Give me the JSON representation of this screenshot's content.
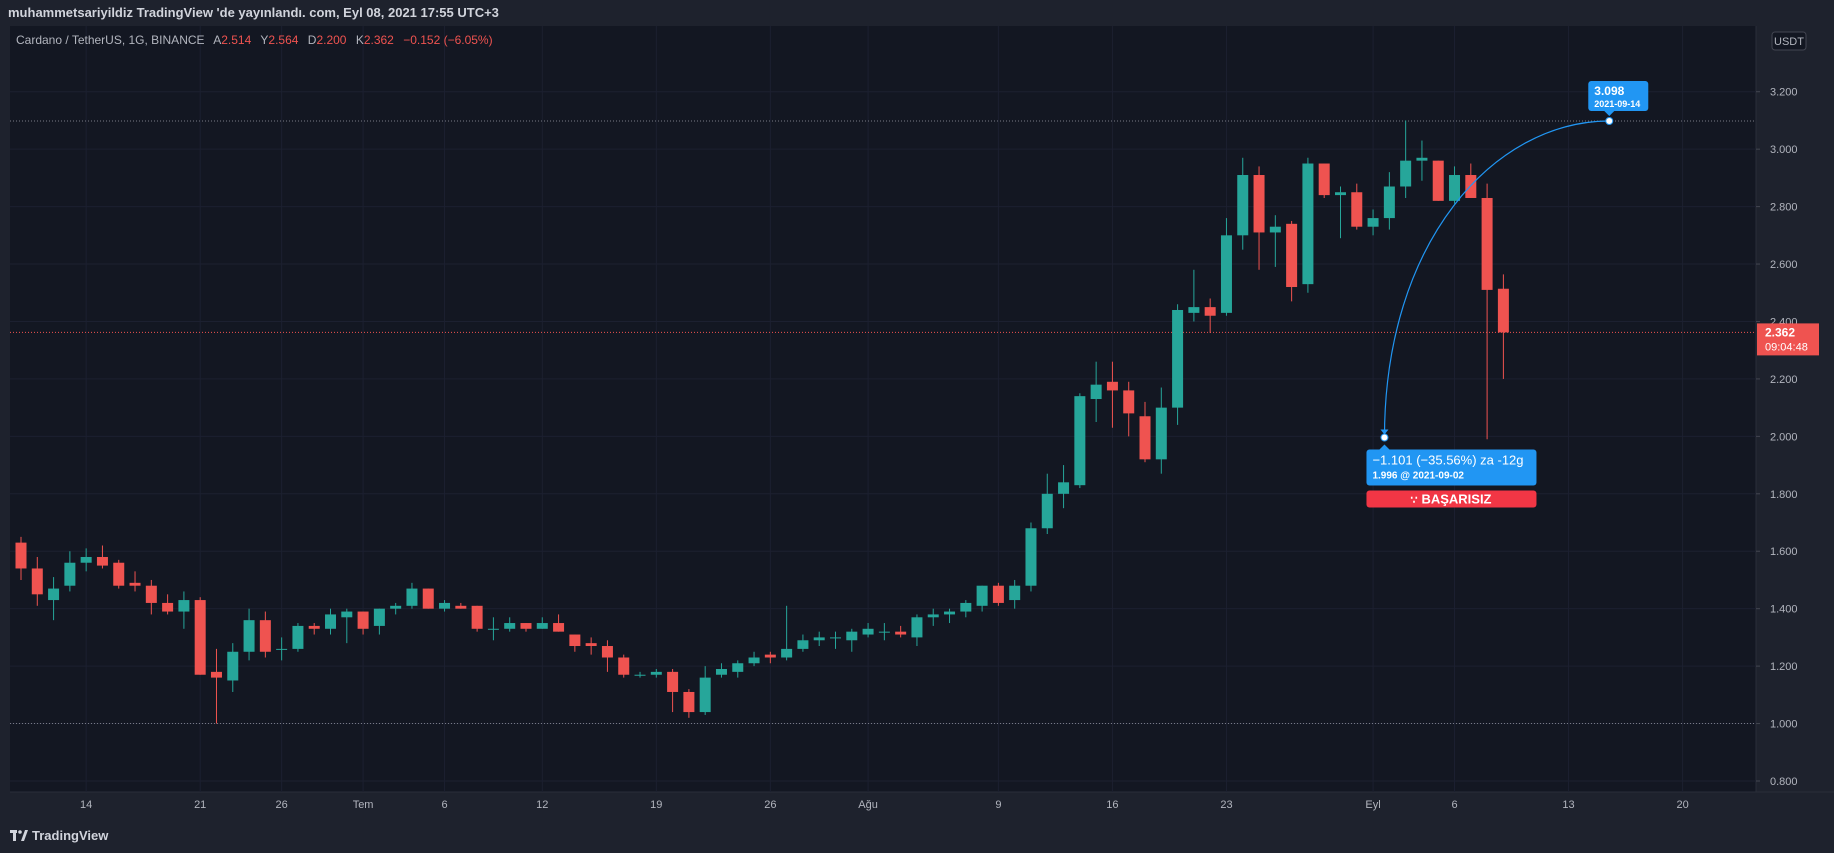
{
  "header": {
    "publish_line": "muhammetsariyildiz TradingView 'de yayınlandı. com, Eyl 08, 2021 17:55 UTC+3"
  },
  "legend": {
    "symbol": "Cardano / TetherUS, 1G, BINANCE",
    "open_label": "A",
    "open": "2.514",
    "high_label": "Y",
    "high": "2.564",
    "low_label": "D",
    "low": "2.200",
    "close_label": "K",
    "close": "2.362",
    "change": "−0.152 (−6.05%)"
  },
  "currency_badge": "USDT",
  "footer": {
    "brand": "TradingView"
  },
  "colors": {
    "background": "#131722",
    "frame": "#1e222d",
    "up": "#26a69a",
    "down": "#ef5350",
    "accent_blue": "#2196f3",
    "fail_red": "#f23645",
    "grid": "#1c2030",
    "text": "#b2b5be"
  },
  "chart_data": {
    "type": "candlestick",
    "y_axis": {
      "range": [
        0.8,
        3.3
      ],
      "ticks": [
        "3.200",
        "3.000",
        "2.800",
        "2.600",
        "2.400",
        "2.200",
        "2.000",
        "1.800",
        "1.600",
        "1.400",
        "1.200",
        "1.000",
        "0.800"
      ]
    },
    "x_ticks": [
      {
        "label": "14",
        "index": 4
      },
      {
        "label": "21",
        "index": 11
      },
      {
        "label": "26",
        "index": 16
      },
      {
        "label": "Tem",
        "index": 21
      },
      {
        "label": "6",
        "index": 26
      },
      {
        "label": "12",
        "index": 32
      },
      {
        "label": "19",
        "index": 39
      },
      {
        "label": "26",
        "index": 46
      },
      {
        "label": "Ağu",
        "index": 52
      },
      {
        "label": "9",
        "index": 60
      },
      {
        "label": "16",
        "index": 67
      },
      {
        "label": "23",
        "index": 74
      },
      {
        "label": "Eyl",
        "index": 83
      },
      {
        "label": "6",
        "index": 88
      },
      {
        "label": "13",
        "index": 95
      },
      {
        "label": "20",
        "index": 102
      }
    ],
    "candles": [
      {
        "o": 1.63,
        "h": 1.65,
        "l": 1.5,
        "c": 1.54
      },
      {
        "o": 1.54,
        "h": 1.58,
        "l": 1.41,
        "c": 1.45
      },
      {
        "o": 1.43,
        "h": 1.51,
        "l": 1.36,
        "c": 1.47
      },
      {
        "o": 1.48,
        "h": 1.6,
        "l": 1.46,
        "c": 1.56
      },
      {
        "o": 1.56,
        "h": 1.61,
        "l": 1.53,
        "c": 1.58
      },
      {
        "o": 1.58,
        "h": 1.62,
        "l": 1.54,
        "c": 1.55
      },
      {
        "o": 1.56,
        "h": 1.57,
        "l": 1.47,
        "c": 1.48
      },
      {
        "o": 1.49,
        "h": 1.53,
        "l": 1.46,
        "c": 1.48
      },
      {
        "o": 1.48,
        "h": 1.5,
        "l": 1.38,
        "c": 1.42
      },
      {
        "o": 1.42,
        "h": 1.45,
        "l": 1.38,
        "c": 1.39
      },
      {
        "o": 1.39,
        "h": 1.46,
        "l": 1.33,
        "c": 1.43
      },
      {
        "o": 1.43,
        "h": 1.44,
        "l": 1.17,
        "c": 1.17
      },
      {
        "o": 1.18,
        "h": 1.26,
        "l": 1.0,
        "c": 1.16
      },
      {
        "o": 1.15,
        "h": 1.28,
        "l": 1.11,
        "c": 1.25
      },
      {
        "o": 1.25,
        "h": 1.4,
        "l": 1.22,
        "c": 1.36
      },
      {
        "o": 1.36,
        "h": 1.39,
        "l": 1.23,
        "c": 1.25
      },
      {
        "o": 1.26,
        "h": 1.3,
        "l": 1.22,
        "c": 1.26
      },
      {
        "o": 1.26,
        "h": 1.35,
        "l": 1.25,
        "c": 1.34
      },
      {
        "o": 1.34,
        "h": 1.35,
        "l": 1.31,
        "c": 1.33
      },
      {
        "o": 1.33,
        "h": 1.4,
        "l": 1.31,
        "c": 1.38
      },
      {
        "o": 1.37,
        "h": 1.4,
        "l": 1.28,
        "c": 1.39
      },
      {
        "o": 1.39,
        "h": 1.39,
        "l": 1.31,
        "c": 1.33
      },
      {
        "o": 1.34,
        "h": 1.4,
        "l": 1.31,
        "c": 1.4
      },
      {
        "o": 1.4,
        "h": 1.42,
        "l": 1.38,
        "c": 1.41
      },
      {
        "o": 1.41,
        "h": 1.49,
        "l": 1.4,
        "c": 1.47
      },
      {
        "o": 1.47,
        "h": 1.47,
        "l": 1.4,
        "c": 1.4
      },
      {
        "o": 1.4,
        "h": 1.43,
        "l": 1.39,
        "c": 1.42
      },
      {
        "o": 1.41,
        "h": 1.42,
        "l": 1.4,
        "c": 1.4
      },
      {
        "o": 1.41,
        "h": 1.41,
        "l": 1.32,
        "c": 1.33
      },
      {
        "o": 1.33,
        "h": 1.37,
        "l": 1.29,
        "c": 1.33
      },
      {
        "o": 1.33,
        "h": 1.37,
        "l": 1.32,
        "c": 1.35
      },
      {
        "o": 1.35,
        "h": 1.35,
        "l": 1.32,
        "c": 1.33
      },
      {
        "o": 1.33,
        "h": 1.37,
        "l": 1.33,
        "c": 1.35
      },
      {
        "o": 1.35,
        "h": 1.38,
        "l": 1.32,
        "c": 1.32
      },
      {
        "o": 1.31,
        "h": 1.31,
        "l": 1.25,
        "c": 1.27
      },
      {
        "o": 1.28,
        "h": 1.3,
        "l": 1.24,
        "c": 1.27
      },
      {
        "o": 1.27,
        "h": 1.29,
        "l": 1.18,
        "c": 1.23
      },
      {
        "o": 1.23,
        "h": 1.24,
        "l": 1.16,
        "c": 1.17
      },
      {
        "o": 1.17,
        "h": 1.18,
        "l": 1.16,
        "c": 1.17
      },
      {
        "o": 1.17,
        "h": 1.19,
        "l": 1.16,
        "c": 1.18
      },
      {
        "o": 1.18,
        "h": 1.19,
        "l": 1.04,
        "c": 1.11
      },
      {
        "o": 1.11,
        "h": 1.12,
        "l": 1.02,
        "c": 1.04
      },
      {
        "o": 1.04,
        "h": 1.2,
        "l": 1.03,
        "c": 1.16
      },
      {
        "o": 1.17,
        "h": 1.21,
        "l": 1.16,
        "c": 1.19
      },
      {
        "o": 1.18,
        "h": 1.22,
        "l": 1.16,
        "c": 1.21
      },
      {
        "o": 1.21,
        "h": 1.25,
        "l": 1.2,
        "c": 1.23
      },
      {
        "o": 1.24,
        "h": 1.25,
        "l": 1.21,
        "c": 1.23
      },
      {
        "o": 1.23,
        "h": 1.41,
        "l": 1.22,
        "c": 1.26
      },
      {
        "o": 1.26,
        "h": 1.31,
        "l": 1.25,
        "c": 1.29
      },
      {
        "o": 1.29,
        "h": 1.32,
        "l": 1.27,
        "c": 1.3
      },
      {
        "o": 1.3,
        "h": 1.32,
        "l": 1.26,
        "c": 1.3
      },
      {
        "o": 1.29,
        "h": 1.33,
        "l": 1.25,
        "c": 1.32
      },
      {
        "o": 1.31,
        "h": 1.35,
        "l": 1.3,
        "c": 1.33
      },
      {
        "o": 1.32,
        "h": 1.35,
        "l": 1.29,
        "c": 1.32
      },
      {
        "o": 1.32,
        "h": 1.34,
        "l": 1.3,
        "c": 1.31
      },
      {
        "o": 1.3,
        "h": 1.38,
        "l": 1.27,
        "c": 1.37
      },
      {
        "o": 1.37,
        "h": 1.4,
        "l": 1.34,
        "c": 1.38
      },
      {
        "o": 1.38,
        "h": 1.4,
        "l": 1.35,
        "c": 1.39
      },
      {
        "o": 1.39,
        "h": 1.43,
        "l": 1.37,
        "c": 1.42
      },
      {
        "o": 1.41,
        "h": 1.48,
        "l": 1.39,
        "c": 1.48
      },
      {
        "o": 1.48,
        "h": 1.49,
        "l": 1.41,
        "c": 1.42
      },
      {
        "o": 1.43,
        "h": 1.5,
        "l": 1.4,
        "c": 1.48
      },
      {
        "o": 1.48,
        "h": 1.7,
        "l": 1.46,
        "c": 1.68
      },
      {
        "o": 1.68,
        "h": 1.87,
        "l": 1.66,
        "c": 1.8
      },
      {
        "o": 1.8,
        "h": 1.9,
        "l": 1.75,
        "c": 1.84
      },
      {
        "o": 1.83,
        "h": 2.15,
        "l": 1.82,
        "c": 2.14
      },
      {
        "o": 2.13,
        "h": 2.26,
        "l": 2.05,
        "c": 2.18
      },
      {
        "o": 2.19,
        "h": 2.26,
        "l": 2.03,
        "c": 2.16
      },
      {
        "o": 2.16,
        "h": 2.19,
        "l": 2.0,
        "c": 2.08
      },
      {
        "o": 2.07,
        "h": 2.12,
        "l": 1.91,
        "c": 1.92
      },
      {
        "o": 1.92,
        "h": 2.17,
        "l": 1.87,
        "c": 2.1
      },
      {
        "o": 2.1,
        "h": 2.46,
        "l": 2.04,
        "c": 2.44
      },
      {
        "o": 2.43,
        "h": 2.58,
        "l": 2.4,
        "c": 2.45
      },
      {
        "o": 2.45,
        "h": 2.48,
        "l": 2.36,
        "c": 2.42
      },
      {
        "o": 2.43,
        "h": 2.76,
        "l": 2.42,
        "c": 2.7
      },
      {
        "o": 2.7,
        "h": 2.97,
        "l": 2.65,
        "c": 2.91
      },
      {
        "o": 2.91,
        "h": 2.94,
        "l": 2.58,
        "c": 2.71
      },
      {
        "o": 2.71,
        "h": 2.77,
        "l": 2.59,
        "c": 2.73
      },
      {
        "o": 2.74,
        "h": 2.75,
        "l": 2.47,
        "c": 2.52
      },
      {
        "o": 2.53,
        "h": 2.97,
        "l": 2.5,
        "c": 2.95
      },
      {
        "o": 2.95,
        "h": 2.95,
        "l": 2.83,
        "c": 2.84
      },
      {
        "o": 2.84,
        "h": 2.87,
        "l": 2.69,
        "c": 2.85
      },
      {
        "o": 2.85,
        "h": 2.88,
        "l": 2.72,
        "c": 2.73
      },
      {
        "o": 2.73,
        "h": 2.79,
        "l": 2.7,
        "c": 2.76
      },
      {
        "o": 2.76,
        "h": 2.92,
        "l": 2.72,
        "c": 2.87
      },
      {
        "o": 2.87,
        "h": 3.1,
        "l": 2.83,
        "c": 2.96
      },
      {
        "o": 2.96,
        "h": 3.03,
        "l": 2.89,
        "c": 2.97
      },
      {
        "o": 2.96,
        "h": 2.96,
        "l": 2.82,
        "c": 2.82
      },
      {
        "o": 2.82,
        "h": 2.94,
        "l": 2.81,
        "c": 2.91
      },
      {
        "o": 2.91,
        "h": 2.95,
        "l": 2.83,
        "c": 2.83
      },
      {
        "o": 2.83,
        "h": 2.88,
        "l": 1.99,
        "c": 2.51
      },
      {
        "o": 2.514,
        "h": 2.564,
        "l": 2.2,
        "c": 2.362
      }
    ],
    "horizontal_lines": [
      3.098,
      1.0
    ],
    "current_price": {
      "value": 2.362,
      "label": "2.362",
      "countdown": "09:04:48"
    },
    "annotation": {
      "target": {
        "value": 3.098,
        "index": 97.5,
        "label_price": "3.098",
        "label_date": "2021-09-14"
      },
      "start": {
        "value": 1.996,
        "index": 83.7
      },
      "start_label_main": "−1.101 (−35.56%) za -12g",
      "start_label_sub": "1.996 @ 2021-09-02",
      "status": "BAŞARISIZ",
      "status_icon": "sad-face-icon"
    }
  }
}
